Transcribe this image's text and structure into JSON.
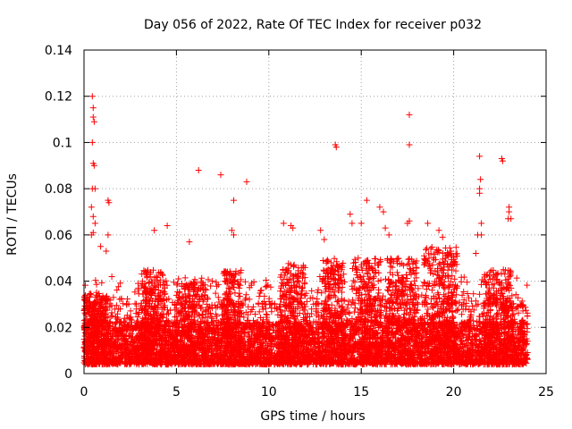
{
  "chart_data": {
    "type": "scatter",
    "title": "Day 056 of 2022, Rate Of TEC Index for receiver p032",
    "xlabel": "GPS time / hours",
    "ylabel": "ROTI / TECUs",
    "xlim": [
      0,
      25
    ],
    "ylim": [
      0,
      0.14
    ],
    "x_ticks": [
      0,
      5,
      10,
      15,
      20,
      25
    ],
    "x_tick_labels": [
      "0",
      "5",
      "10",
      "15",
      "20",
      "25"
    ],
    "y_ticks": [
      0,
      0.02,
      0.04,
      0.06,
      0.08,
      0.1,
      0.12,
      0.14
    ],
    "y_tick_labels": [
      "0",
      "0.02",
      "0.04",
      "0.06",
      "0.08",
      "0.1",
      "0.12",
      "0.14"
    ],
    "grid": true,
    "marker": "+",
    "series": [
      {
        "name": "p032",
        "color": "#ff0000",
        "data_range_hours": [
          0,
          24
        ],
        "typical_band": [
          0.004,
          0.03
        ],
        "outliers": [
          [
            0.45,
            0.12
          ],
          [
            0.5,
            0.115
          ],
          [
            0.5,
            0.111
          ],
          [
            0.55,
            0.109
          ],
          [
            0.45,
            0.1
          ],
          [
            0.5,
            0.091
          ],
          [
            0.55,
            0.09
          ],
          [
            0.45,
            0.08
          ],
          [
            0.6,
            0.08
          ],
          [
            0.4,
            0.072
          ],
          [
            0.5,
            0.068
          ],
          [
            0.6,
            0.065
          ],
          [
            0.5,
            0.061
          ],
          [
            0.4,
            0.06
          ],
          [
            0.9,
            0.055
          ],
          [
            1.3,
            0.075
          ],
          [
            1.35,
            0.074
          ],
          [
            1.3,
            0.06
          ],
          [
            1.2,
            0.053
          ],
          [
            6.2,
            0.088
          ],
          [
            7.4,
            0.086
          ],
          [
            8.1,
            0.075
          ],
          [
            8.8,
            0.083
          ],
          [
            8.0,
            0.062
          ],
          [
            8.1,
            0.06
          ],
          [
            5.7,
            0.057
          ],
          [
            4.5,
            0.064
          ],
          [
            3.8,
            0.062
          ],
          [
            10.8,
            0.065
          ],
          [
            11.2,
            0.064
          ],
          [
            11.3,
            0.063
          ],
          [
            12.8,
            0.062
          ],
          [
            13.0,
            0.058
          ],
          [
            13.6,
            0.099
          ],
          [
            13.65,
            0.098
          ],
          [
            14.4,
            0.069
          ],
          [
            14.5,
            0.065
          ],
          [
            15.3,
            0.075
          ],
          [
            15.0,
            0.065
          ],
          [
            16.0,
            0.072
          ],
          [
            16.2,
            0.07
          ],
          [
            16.3,
            0.063
          ],
          [
            16.5,
            0.06
          ],
          [
            17.6,
            0.112
          ],
          [
            17.6,
            0.099
          ],
          [
            17.6,
            0.066
          ],
          [
            17.5,
            0.065
          ],
          [
            18.6,
            0.065
          ],
          [
            19.2,
            0.062
          ],
          [
            19.4,
            0.059
          ],
          [
            21.4,
            0.094
          ],
          [
            21.45,
            0.084
          ],
          [
            21.4,
            0.08
          ],
          [
            21.4,
            0.078
          ],
          [
            21.5,
            0.065
          ],
          [
            21.3,
            0.06
          ],
          [
            21.5,
            0.06
          ],
          [
            22.6,
            0.093
          ],
          [
            22.65,
            0.092
          ],
          [
            23.0,
            0.072
          ],
          [
            23.0,
            0.07
          ],
          [
            22.95,
            0.067
          ],
          [
            23.1,
            0.067
          ],
          [
            21.2,
            0.052
          ]
        ],
        "clusters": [
          {
            "x_center": 0.6,
            "width": 1.2,
            "level": 0.035,
            "n": 220
          },
          {
            "x_center": 3.8,
            "width": 1.4,
            "level": 0.045,
            "n": 200
          },
          {
            "x_center": 5.8,
            "width": 1.6,
            "level": 0.04,
            "n": 180
          },
          {
            "x_center": 8.0,
            "width": 1.0,
            "level": 0.045,
            "n": 150
          },
          {
            "x_center": 11.3,
            "width": 1.4,
            "level": 0.048,
            "n": 180
          },
          {
            "x_center": 13.5,
            "width": 1.2,
            "level": 0.05,
            "n": 180
          },
          {
            "x_center": 15.3,
            "width": 1.6,
            "level": 0.05,
            "n": 220
          },
          {
            "x_center": 17.2,
            "width": 1.6,
            "level": 0.05,
            "n": 220
          },
          {
            "x_center": 19.3,
            "width": 1.8,
            "level": 0.055,
            "n": 260
          },
          {
            "x_center": 22.4,
            "width": 1.6,
            "level": 0.045,
            "n": 220
          }
        ],
        "background_points": 6500
      }
    ]
  }
}
